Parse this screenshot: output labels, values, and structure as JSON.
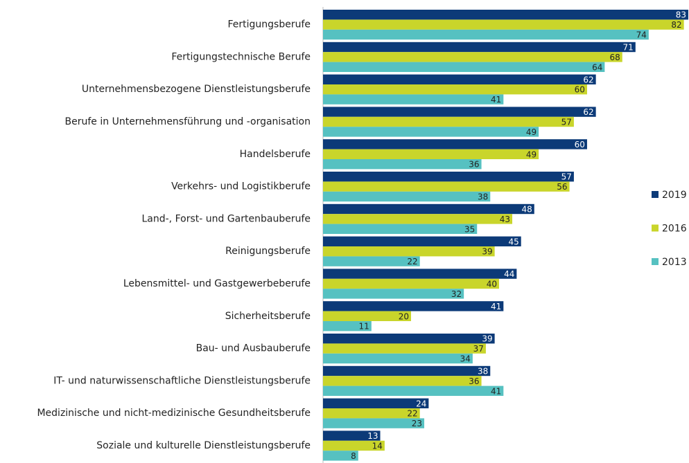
{
  "chart_data": {
    "type": "bar",
    "orientation": "horizontal",
    "categories": [
      "Fertigungsberufe",
      "Fertigungstechnische Berufe",
      "Unternehmensbezogene Dienstleistungsberufe",
      "Berufe in Unternehmensführung und -organisation",
      "Handelsberufe",
      "Verkehrs- und Logistikberufe",
      "Land-, Forst- und Gartenbauberufe",
      "Reinigungsberufe",
      "Lebensmittel- und Gastgewerbeberufe",
      "Sicherheitsberufe",
      "Bau- und Ausbauberufe",
      "IT- und naturwissenschaftliche Dienstleistungsberufe",
      "Medizinische und nicht-medizinische Gesundheitsberufe",
      "Soziale und kulturelle Dienstleistungsberufe"
    ],
    "series": [
      {
        "name": "2019",
        "color": "#0c3a78",
        "label_color": "#ffffff",
        "values": [
          83,
          71,
          62,
          62,
          60,
          57,
          48,
          45,
          44,
          41,
          39,
          38,
          24,
          13
        ]
      },
      {
        "name": "2016",
        "color": "#c9d52b",
        "label_color": "#222222",
        "values": [
          82,
          68,
          60,
          57,
          49,
          56,
          43,
          39,
          40,
          20,
          37,
          36,
          22,
          14
        ]
      },
      {
        "name": "2013",
        "color": "#56c1c1",
        "label_color": "#222222",
        "values": [
          74,
          64,
          41,
          49,
          36,
          38,
          35,
          22,
          32,
          11,
          34,
          41,
          23,
          8
        ]
      }
    ],
    "xlim": [
      0,
      83
    ],
    "legend": "right"
  }
}
